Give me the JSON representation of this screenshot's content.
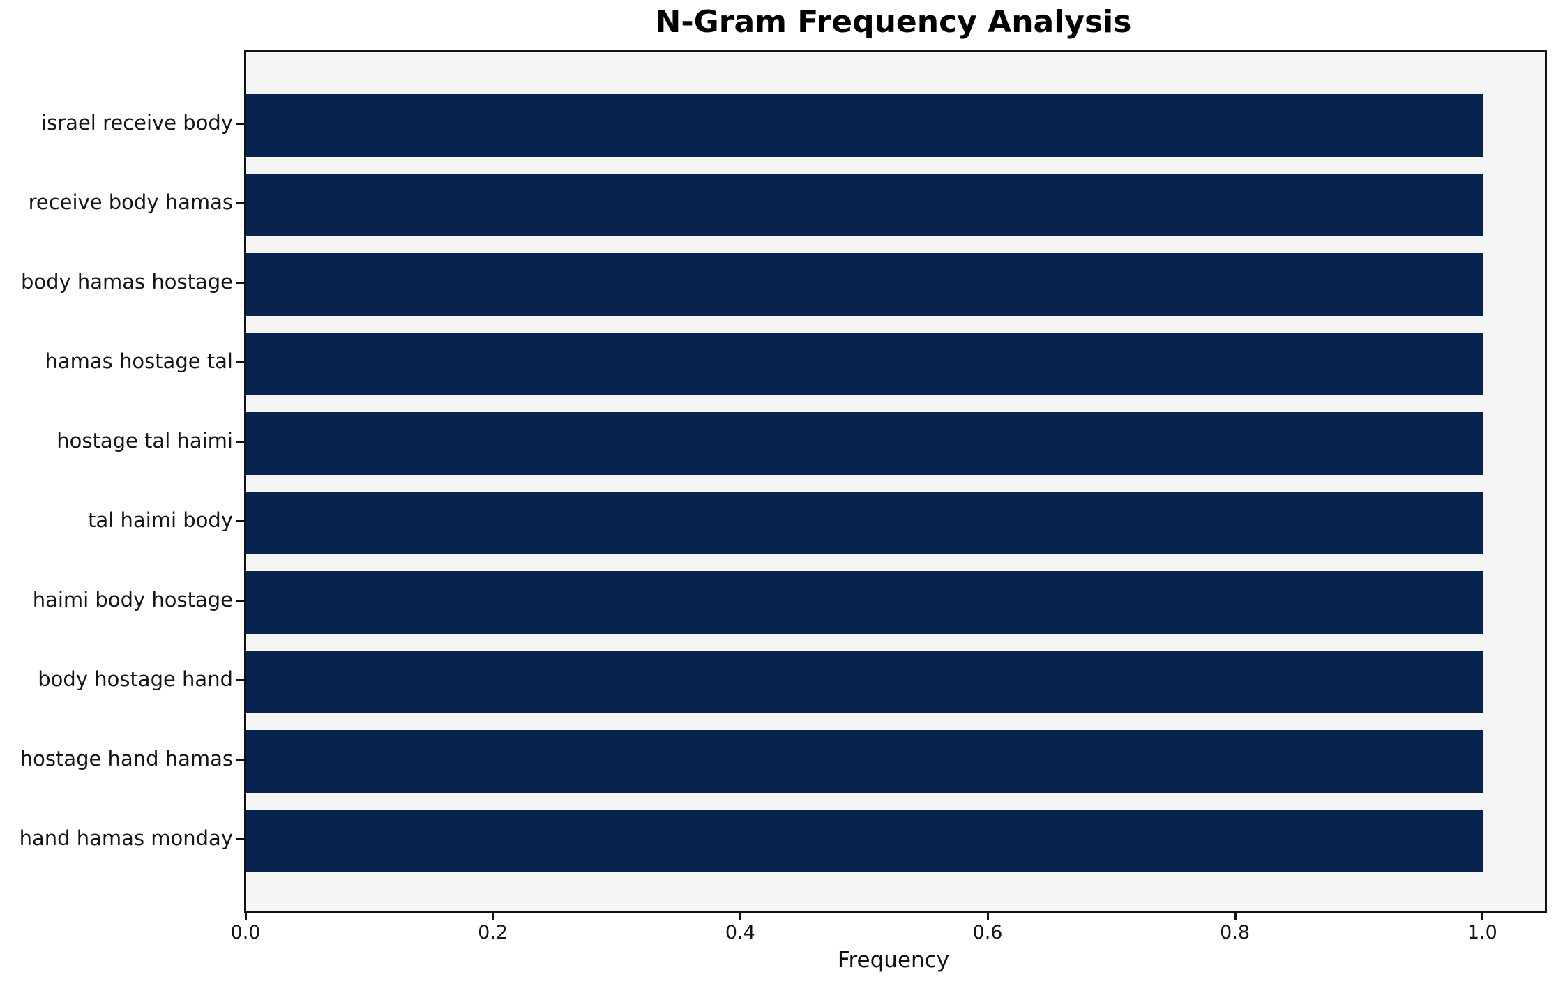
{
  "chart_data": {
    "type": "bar",
    "orientation": "horizontal",
    "title": "N-Gram Frequency Analysis",
    "xlabel": "Frequency",
    "ylabel": "",
    "categories": [
      "israel receive body",
      "receive body hamas",
      "body hamas hostage",
      "hamas hostage tal",
      "hostage tal haimi",
      "tal haimi body",
      "haimi body hostage",
      "body hostage hand",
      "hostage hand hamas",
      "hand hamas monday"
    ],
    "values": [
      1.0,
      1.0,
      1.0,
      1.0,
      1.0,
      1.0,
      1.0,
      1.0,
      1.0,
      1.0
    ],
    "x_ticks": [
      0.0,
      0.2,
      0.4,
      0.6,
      0.8,
      1.0
    ],
    "x_tick_labels": [
      "0.0",
      "0.2",
      "0.4",
      "0.6",
      "0.8",
      "1.0"
    ],
    "xlim": [
      0,
      1.05
    ],
    "bar_color": "#08244E",
    "plot_bg": "#f5f5f6",
    "grid": false,
    "legend": null
  }
}
